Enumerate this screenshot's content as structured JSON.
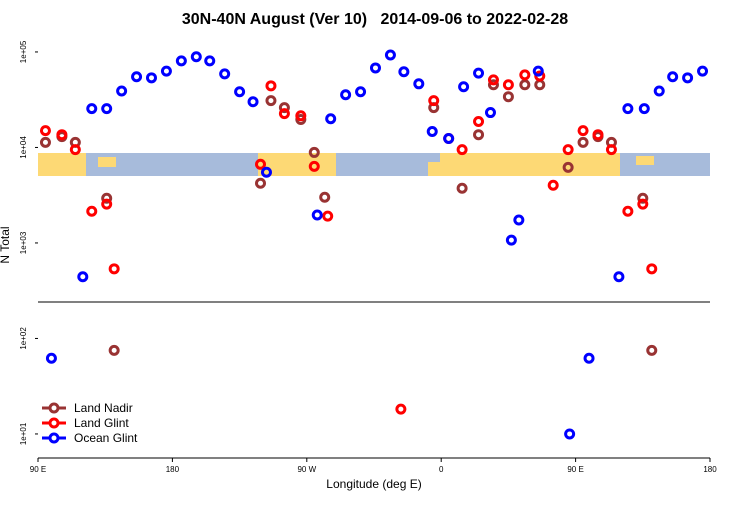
{
  "chart_data": {
    "type": "scatter",
    "title": "30N-40N August (Ver 10)   2014-09-06 to 2022-02-28",
    "x_label": "Longitude (deg E)",
    "y_label": "N Total",
    "log_y": true,
    "legend": "bottom-left",
    "xlim": [
      90,
      540
    ],
    "xticks": [
      {
        "value": 90,
        "label": "90 E"
      },
      {
        "value": 180,
        "label": "180"
      },
      {
        "value": 270,
        "label": "90 W"
      },
      {
        "value": 360,
        "label": "0"
      },
      {
        "value": 450,
        "label": "90 E"
      },
      {
        "value": 540,
        "label": "180"
      }
    ],
    "ylim": [
      5.6,
      140000
    ],
    "yticks": [
      {
        "value": 10,
        "label": "1e+01"
      },
      {
        "value": 100,
        "label": "1e+02"
      },
      {
        "value": 1000,
        "label": "1e+03"
      },
      {
        "value": 10000,
        "label": "1e+04"
      },
      {
        "value": 100000,
        "label": "1e+05"
      }
    ],
    "series": [
      {
        "name": "Land Nadir",
        "color": "#993333",
        "x": [
          95,
          106,
          115,
          136,
          141,
          239,
          246,
          255,
          266,
          275,
          282,
          355,
          374,
          385,
          395,
          405,
          416,
          426,
          445,
          455,
          465,
          474,
          495,
          501
        ],
        "values": [
          11300,
          13000,
          11300,
          2940,
          75,
          4220,
          30900,
          26100,
          19600,
          8870,
          3010,
          26100,
          3740,
          13600,
          45300,
          34000,
          45300,
          45300,
          6190,
          11300,
          13000,
          11300,
          2940,
          75
        ]
      },
      {
        "name": "Land Glint",
        "color": "#ff0000",
        "x": [
          95,
          106,
          115,
          126,
          136,
          141,
          239,
          246,
          255,
          266,
          275,
          284,
          333,
          355,
          365,
          374,
          385,
          395,
          405,
          416,
          426,
          435,
          445,
          455,
          465,
          474,
          485,
          495,
          501
        ],
        "values": [
          15000,
          13600,
          9500,
          2150,
          2550,
          536,
          6660,
          44200,
          22600,
          21500,
          6340,
          1910,
          18.2,
          30900,
          12400,
          9500,
          18700,
          51000,
          45300,
          57500,
          56000,
          4020,
          9500,
          15000,
          13600,
          9500,
          2150,
          2550,
          536
        ]
      },
      {
        "name": "Ocean Glint",
        "color": "#0000ff",
        "x": [
          99,
          120,
          126,
          136,
          146,
          156,
          166,
          176,
          186,
          196,
          205,
          215,
          225,
          234,
          243,
          277,
          286,
          296,
          306,
          316,
          326,
          335,
          345,
          354,
          365,
          375,
          385,
          393,
          407,
          412,
          425,
          446,
          459,
          479,
          485,
          496,
          506,
          515,
          525,
          535
        ],
        "values": [
          62,
          443,
          25500,
          25500,
          39000,
          55000,
          53600,
          63000,
          80600,
          89000,
          80600,
          59000,
          38300,
          30100,
          5500,
          1960,
          20000,
          35600,
          38300,
          68000,
          93000,
          62000,
          46400,
          14700,
          12400,
          43200,
          60000,
          23200,
          1070,
          1740,
          63000,
          10,
          62,
          443,
          25500,
          25500,
          39000,
          55000,
          53600,
          63000
        ]
      }
    ]
  }
}
